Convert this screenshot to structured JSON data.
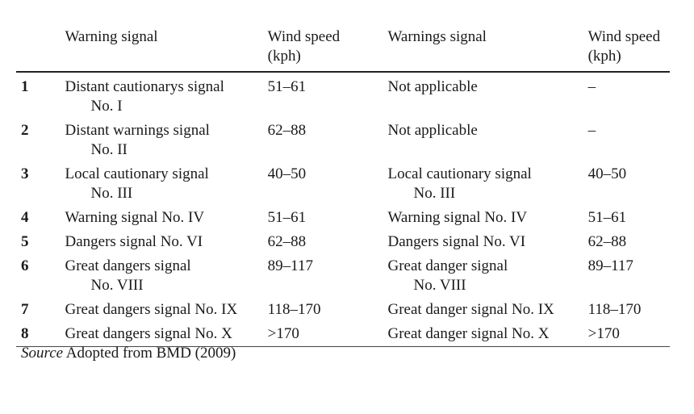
{
  "headers": {
    "num": "",
    "warning1": "Warning signal",
    "speed1_line1": "Wind speed",
    "speed1_line2": "(kph)",
    "warning2": "Warnings signal",
    "speed2_line1": "Wind speed",
    "speed2_line2": "(kph)"
  },
  "rows": [
    {
      "num": "1",
      "w1a": "Distant cautionarys signal",
      "w1b": "No. I",
      "s1": "51–61",
      "w2a": "Not applicable",
      "w2b": "",
      "s2": "–"
    },
    {
      "num": "2",
      "w1a": "Distant warnings signal",
      "w1b": "No. II",
      "s1": "62–88",
      "w2a": "Not applicable",
      "w2b": "",
      "s2": "–"
    },
    {
      "num": "3",
      "w1a": "Local cautionary signal",
      "w1b": "No. III",
      "s1": "40–50",
      "w2a": "Local cautionary signal",
      "w2b": "No. III",
      "s2": "40–50"
    },
    {
      "num": "4",
      "w1a": "Warning signal No. IV",
      "w1b": "",
      "s1": "51–61",
      "w2a": "Warning signal No. IV",
      "w2b": "",
      "s2": "51–61"
    },
    {
      "num": "5",
      "w1a": "Dangers signal No. VI",
      "w1b": "",
      "s1": "62–88",
      "w2a": "Dangers signal No. VI",
      "w2b": "",
      "s2": "62–88"
    },
    {
      "num": "6",
      "w1a": "Great dangers signal",
      "w1b": "No. VIII",
      "s1": "89–117",
      "w2a": "Great danger signal",
      "w2b": "No. VIII",
      "s2": "89–117"
    },
    {
      "num": "7",
      "w1a": "Great dangers signal No. IX",
      "w1b": "",
      "s1": "118–170",
      "w2a": "Great danger signal No. IX",
      "w2b": "",
      "s2": "118–170"
    },
    {
      "num": "8",
      "w1a": "Great dangers signal No. X",
      "w1b": "",
      "s1": ">170",
      "w2a": "Great danger signal No. X",
      "w2b": "",
      "s2": ">170"
    }
  ],
  "source": {
    "label": "Source",
    "text": " Adopted from BMD (2009)"
  }
}
